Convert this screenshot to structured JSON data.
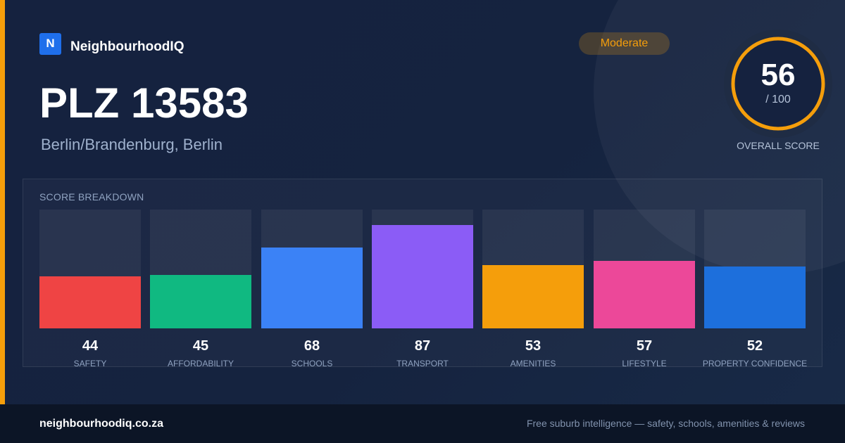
{
  "brand": {
    "logo_letter": "N",
    "name": "NeighbourhoodIQ",
    "logo_color": "#1f6feb"
  },
  "header": {
    "title": "PLZ 13583",
    "location": "Berlin/Brandenburg, Berlin",
    "rating_label": "Moderate",
    "rating_color": "#f59e0b"
  },
  "overall": {
    "score": "56",
    "max_label": "/ 100",
    "caption": "OVERALL SCORE",
    "value": 56,
    "max": 100,
    "ring_color": "#f59e0b"
  },
  "breakdown": {
    "heading": "SCORE BREAKDOWN",
    "items": [
      {
        "label": "SAFETY",
        "value": 44,
        "color": "#ef4444"
      },
      {
        "label": "AFFORDABILITY",
        "value": 45,
        "color": "#10b981"
      },
      {
        "label": "SCHOOLS",
        "value": 68,
        "color": "#3b82f6"
      },
      {
        "label": "TRANSPORT",
        "value": 87,
        "color": "#8b5cf6"
      },
      {
        "label": "AMENITIES",
        "value": 53,
        "color": "#f59e0b"
      },
      {
        "label": "LIFESTYLE",
        "value": 57,
        "color": "#ec4899"
      },
      {
        "label": "PROPERTY CONFIDENCE",
        "value": 52,
        "color": "#1d6fdc"
      }
    ]
  },
  "footer": {
    "url": "neighbourhoodiq.co.za",
    "tagline": "Free suburb intelligence — safety, schools, amenities & reviews"
  }
}
